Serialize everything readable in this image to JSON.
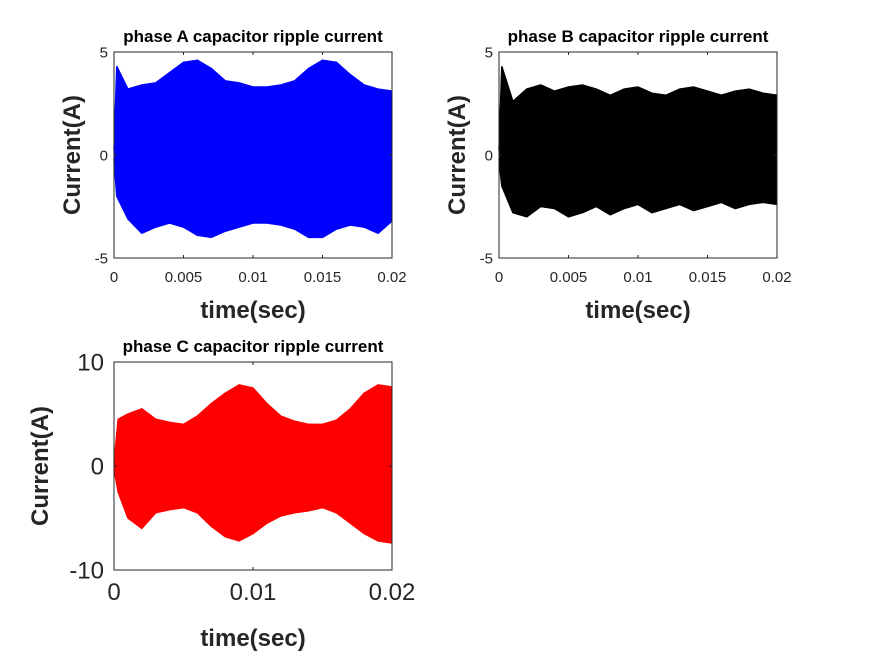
{
  "chart_data": [
    {
      "type": "line",
      "title": "phase A capacitor ripple current",
      "xlabel": "time(sec)",
      "ylabel": "Current(A)",
      "xlim": [
        0,
        0.02
      ],
      "ylim": [
        -5,
        5
      ],
      "xticks": [
        "0",
        "0.005",
        "0.01",
        "0.015",
        "0.02"
      ],
      "yticks": [
        "-5",
        "0",
        "5"
      ],
      "grid": false,
      "color": "#0000ff",
      "series": [
        {
          "description": "upper envelope of high-frequency ripple",
          "x": [
            0,
            0.0002,
            0.001,
            0.002,
            0.003,
            0.004,
            0.005,
            0.006,
            0.007,
            0.008,
            0.009,
            0.01,
            0.011,
            0.012,
            0.013,
            0.014,
            0.015,
            0.016,
            0.017,
            0.018,
            0.019,
            0.02
          ],
          "y": [
            0.2,
            4.3,
            3.2,
            3.4,
            3.5,
            4.0,
            4.5,
            4.6,
            4.2,
            3.6,
            3.5,
            3.3,
            3.3,
            3.4,
            3.6,
            4.2,
            4.6,
            4.5,
            3.9,
            3.4,
            3.2,
            3.1
          ]
        },
        {
          "description": "lower envelope of high-frequency ripple",
          "x": [
            0,
            0.0002,
            0.001,
            0.002,
            0.003,
            0.004,
            0.005,
            0.006,
            0.007,
            0.008,
            0.009,
            0.01,
            0.011,
            0.012,
            0.013,
            0.014,
            0.015,
            0.016,
            0.017,
            0.018,
            0.019,
            0.02
          ],
          "y": [
            -0.2,
            -2.0,
            -3.1,
            -3.8,
            -3.5,
            -3.3,
            -3.5,
            -3.9,
            -4.0,
            -3.7,
            -3.5,
            -3.3,
            -3.3,
            -3.4,
            -3.6,
            -4.0,
            -4.0,
            -3.6,
            -3.4,
            -3.5,
            -3.8,
            -3.2
          ]
        }
      ]
    },
    {
      "type": "line",
      "title": "phase B capacitor ripple current",
      "xlabel": "time(sec)",
      "ylabel": "Current(A)",
      "xlim": [
        0,
        0.02
      ],
      "ylim": [
        -5,
        5
      ],
      "xticks": [
        "0",
        "0.005",
        "0.01",
        "0.015",
        "0.02"
      ],
      "yticks": [
        "-5",
        "0",
        "5"
      ],
      "grid": false,
      "color": "#000000",
      "series": [
        {
          "description": "upper envelope of high-frequency ripple",
          "x": [
            0,
            0.0002,
            0.001,
            0.002,
            0.003,
            0.004,
            0.005,
            0.006,
            0.007,
            0.008,
            0.009,
            0.01,
            0.011,
            0.012,
            0.013,
            0.014,
            0.015,
            0.016,
            0.017,
            0.018,
            0.019,
            0.02
          ],
          "y": [
            0.2,
            4.3,
            2.6,
            3.2,
            3.4,
            3.1,
            3.3,
            3.4,
            3.2,
            2.9,
            3.2,
            3.3,
            3.0,
            2.9,
            3.2,
            3.3,
            3.1,
            2.9,
            3.1,
            3.2,
            3.0,
            2.9
          ]
        },
        {
          "description": "lower envelope of high-frequency ripple",
          "x": [
            0,
            0.0002,
            0.001,
            0.002,
            0.003,
            0.004,
            0.005,
            0.006,
            0.007,
            0.008,
            0.009,
            0.01,
            0.011,
            0.012,
            0.013,
            0.014,
            0.015,
            0.016,
            0.017,
            0.018,
            0.019,
            0.02
          ],
          "y": [
            -0.2,
            -1.5,
            -2.8,
            -3.0,
            -2.5,
            -2.6,
            -3.0,
            -2.8,
            -2.5,
            -2.9,
            -2.6,
            -2.4,
            -2.8,
            -2.6,
            -2.4,
            -2.7,
            -2.5,
            -2.3,
            -2.6,
            -2.4,
            -2.3,
            -2.4
          ]
        }
      ]
    },
    {
      "type": "line",
      "title": "phase C capacitor ripple current",
      "xlabel": "time(sec)",
      "ylabel": "Current(A)",
      "xlim": [
        0,
        0.02
      ],
      "ylim": [
        -10,
        10
      ],
      "xticks": [
        "0",
        "0.01",
        "0.02"
      ],
      "yticks": [
        "-10",
        "0",
        "10"
      ],
      "grid": false,
      "color": "#ff0000",
      "series": [
        {
          "description": "upper envelope of high-frequency ripple",
          "x": [
            0,
            0.0003,
            0.001,
            0.002,
            0.003,
            0.004,
            0.005,
            0.006,
            0.007,
            0.008,
            0.009,
            0.01,
            0.011,
            0.012,
            0.013,
            0.014,
            0.015,
            0.016,
            0.017,
            0.018,
            0.019,
            0.02
          ],
          "y": [
            0.3,
            4.5,
            5.0,
            5.5,
            4.5,
            4.2,
            4.0,
            4.8,
            6.0,
            7.0,
            7.8,
            7.5,
            6.0,
            4.8,
            4.3,
            4.0,
            4.0,
            4.4,
            5.5,
            7.0,
            7.8,
            7.6
          ]
        },
        {
          "description": "lower envelope of high-frequency ripple",
          "x": [
            0,
            0.0003,
            0.001,
            0.002,
            0.003,
            0.004,
            0.005,
            0.006,
            0.007,
            0.008,
            0.009,
            0.01,
            0.011,
            0.012,
            0.013,
            0.014,
            0.015,
            0.016,
            0.017,
            0.018,
            0.019,
            0.02
          ],
          "y": [
            -0.3,
            -2.5,
            -5.0,
            -6.0,
            -4.5,
            -4.2,
            -4.0,
            -4.5,
            -5.8,
            -6.8,
            -7.2,
            -6.5,
            -5.5,
            -4.8,
            -4.5,
            -4.3,
            -4.0,
            -4.5,
            -5.5,
            -6.5,
            -7.2,
            -7.4
          ]
        }
      ]
    }
  ]
}
